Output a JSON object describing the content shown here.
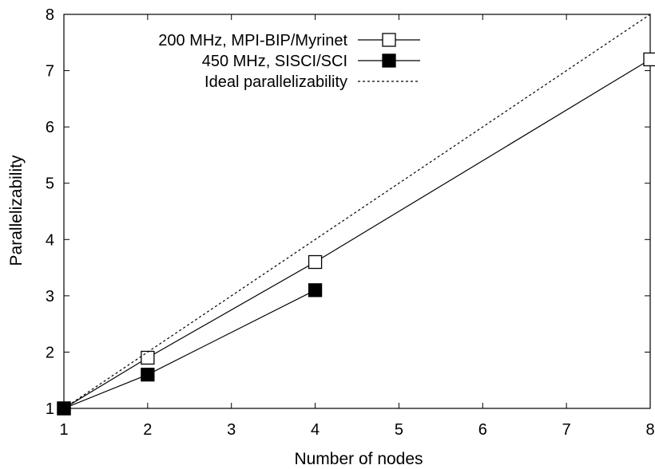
{
  "chart_data": {
    "type": "line",
    "title": "",
    "xlabel": "Number of nodes",
    "ylabel": "Parallelizability",
    "xlim": [
      1,
      8
    ],
    "ylim": [
      1,
      8
    ],
    "xticks": [
      1,
      2,
      3,
      4,
      5,
      6,
      7,
      8
    ],
    "yticks": [
      1,
      2,
      3,
      4,
      5,
      6,
      7,
      8
    ],
    "grid": false,
    "legend_position": "top-left",
    "series": [
      {
        "name": "200 MHz, MPI-BIP/Myrinet",
        "marker": "open-square",
        "line": "solid",
        "color": "#000000",
        "x": [
          1,
          2,
          4,
          8
        ],
        "y": [
          1.0,
          1.9,
          3.6,
          7.2
        ]
      },
      {
        "name": "450 MHz, SISCI/SCI",
        "marker": "filled-square",
        "line": "solid",
        "color": "#000000",
        "x": [
          1,
          2,
          4
        ],
        "y": [
          1.0,
          1.6,
          3.1
        ]
      },
      {
        "name": "Ideal parallelizability",
        "marker": "none",
        "line": "dotted",
        "color": "#000000",
        "x": [
          1,
          8
        ],
        "y": [
          1,
          8
        ]
      }
    ]
  }
}
